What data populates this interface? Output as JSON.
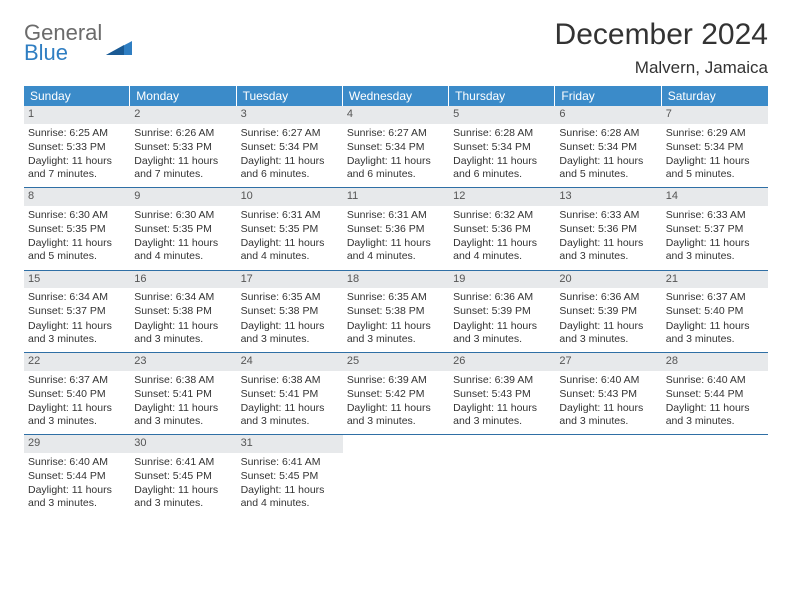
{
  "logo": {
    "line1": "General",
    "line2": "Blue"
  },
  "title": "December 2024",
  "location": "Malvern, Jamaica",
  "colors": {
    "header_bg": "#3b8bc9",
    "daynum_bg": "#e7e9eb",
    "rule": "#2f6fa5",
    "text": "#333333",
    "logo_gray": "#6b6b6b",
    "logo_blue": "#2f7ec2"
  },
  "typography": {
    "title_fontsize": 30,
    "location_fontsize": 17,
    "dow_fontsize": 12,
    "cell_fontsize": 10.5
  },
  "days_of_week": [
    "Sunday",
    "Monday",
    "Tuesday",
    "Wednesday",
    "Thursday",
    "Friday",
    "Saturday"
  ],
  "weeks": [
    [
      {
        "n": "1",
        "sr": "Sunrise: 6:25 AM",
        "ss": "Sunset: 5:33 PM",
        "dl": "Daylight: 11 hours and 7 minutes."
      },
      {
        "n": "2",
        "sr": "Sunrise: 6:26 AM",
        "ss": "Sunset: 5:33 PM",
        "dl": "Daylight: 11 hours and 7 minutes."
      },
      {
        "n": "3",
        "sr": "Sunrise: 6:27 AM",
        "ss": "Sunset: 5:34 PM",
        "dl": "Daylight: 11 hours and 6 minutes."
      },
      {
        "n": "4",
        "sr": "Sunrise: 6:27 AM",
        "ss": "Sunset: 5:34 PM",
        "dl": "Daylight: 11 hours and 6 minutes."
      },
      {
        "n": "5",
        "sr": "Sunrise: 6:28 AM",
        "ss": "Sunset: 5:34 PM",
        "dl": "Daylight: 11 hours and 6 minutes."
      },
      {
        "n": "6",
        "sr": "Sunrise: 6:28 AM",
        "ss": "Sunset: 5:34 PM",
        "dl": "Daylight: 11 hours and 5 minutes."
      },
      {
        "n": "7",
        "sr": "Sunrise: 6:29 AM",
        "ss": "Sunset: 5:34 PM",
        "dl": "Daylight: 11 hours and 5 minutes."
      }
    ],
    [
      {
        "n": "8",
        "sr": "Sunrise: 6:30 AM",
        "ss": "Sunset: 5:35 PM",
        "dl": "Daylight: 11 hours and 5 minutes."
      },
      {
        "n": "9",
        "sr": "Sunrise: 6:30 AM",
        "ss": "Sunset: 5:35 PM",
        "dl": "Daylight: 11 hours and 4 minutes."
      },
      {
        "n": "10",
        "sr": "Sunrise: 6:31 AM",
        "ss": "Sunset: 5:35 PM",
        "dl": "Daylight: 11 hours and 4 minutes."
      },
      {
        "n": "11",
        "sr": "Sunrise: 6:31 AM",
        "ss": "Sunset: 5:36 PM",
        "dl": "Daylight: 11 hours and 4 minutes."
      },
      {
        "n": "12",
        "sr": "Sunrise: 6:32 AM",
        "ss": "Sunset: 5:36 PM",
        "dl": "Daylight: 11 hours and 4 minutes."
      },
      {
        "n": "13",
        "sr": "Sunrise: 6:33 AM",
        "ss": "Sunset: 5:36 PM",
        "dl": "Daylight: 11 hours and 3 minutes."
      },
      {
        "n": "14",
        "sr": "Sunrise: 6:33 AM",
        "ss": "Sunset: 5:37 PM",
        "dl": "Daylight: 11 hours and 3 minutes."
      }
    ],
    [
      {
        "n": "15",
        "sr": "Sunrise: 6:34 AM",
        "ss": "Sunset: 5:37 PM",
        "dl": "Daylight: 11 hours and 3 minutes."
      },
      {
        "n": "16",
        "sr": "Sunrise: 6:34 AM",
        "ss": "Sunset: 5:38 PM",
        "dl": "Daylight: 11 hours and 3 minutes."
      },
      {
        "n": "17",
        "sr": "Sunrise: 6:35 AM",
        "ss": "Sunset: 5:38 PM",
        "dl": "Daylight: 11 hours and 3 minutes."
      },
      {
        "n": "18",
        "sr": "Sunrise: 6:35 AM",
        "ss": "Sunset: 5:38 PM",
        "dl": "Daylight: 11 hours and 3 minutes."
      },
      {
        "n": "19",
        "sr": "Sunrise: 6:36 AM",
        "ss": "Sunset: 5:39 PM",
        "dl": "Daylight: 11 hours and 3 minutes."
      },
      {
        "n": "20",
        "sr": "Sunrise: 6:36 AM",
        "ss": "Sunset: 5:39 PM",
        "dl": "Daylight: 11 hours and 3 minutes."
      },
      {
        "n": "21",
        "sr": "Sunrise: 6:37 AM",
        "ss": "Sunset: 5:40 PM",
        "dl": "Daylight: 11 hours and 3 minutes."
      }
    ],
    [
      {
        "n": "22",
        "sr": "Sunrise: 6:37 AM",
        "ss": "Sunset: 5:40 PM",
        "dl": "Daylight: 11 hours and 3 minutes."
      },
      {
        "n": "23",
        "sr": "Sunrise: 6:38 AM",
        "ss": "Sunset: 5:41 PM",
        "dl": "Daylight: 11 hours and 3 minutes."
      },
      {
        "n": "24",
        "sr": "Sunrise: 6:38 AM",
        "ss": "Sunset: 5:41 PM",
        "dl": "Daylight: 11 hours and 3 minutes."
      },
      {
        "n": "25",
        "sr": "Sunrise: 6:39 AM",
        "ss": "Sunset: 5:42 PM",
        "dl": "Daylight: 11 hours and 3 minutes."
      },
      {
        "n": "26",
        "sr": "Sunrise: 6:39 AM",
        "ss": "Sunset: 5:43 PM",
        "dl": "Daylight: 11 hours and 3 minutes."
      },
      {
        "n": "27",
        "sr": "Sunrise: 6:40 AM",
        "ss": "Sunset: 5:43 PM",
        "dl": "Daylight: 11 hours and 3 minutes."
      },
      {
        "n": "28",
        "sr": "Sunrise: 6:40 AM",
        "ss": "Sunset: 5:44 PM",
        "dl": "Daylight: 11 hours and 3 minutes."
      }
    ],
    [
      {
        "n": "29",
        "sr": "Sunrise: 6:40 AM",
        "ss": "Sunset: 5:44 PM",
        "dl": "Daylight: 11 hours and 3 minutes."
      },
      {
        "n": "30",
        "sr": "Sunrise: 6:41 AM",
        "ss": "Sunset: 5:45 PM",
        "dl": "Daylight: 11 hours and 3 minutes."
      },
      {
        "n": "31",
        "sr": "Sunrise: 6:41 AM",
        "ss": "Sunset: 5:45 PM",
        "dl": "Daylight: 11 hours and 4 minutes."
      },
      null,
      null,
      null,
      null
    ]
  ]
}
